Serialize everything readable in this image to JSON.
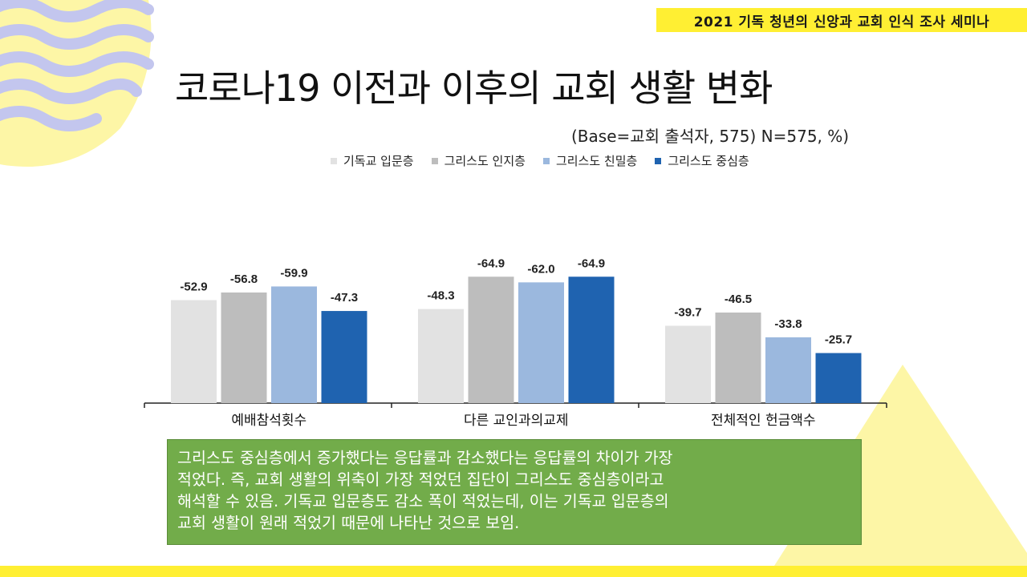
{
  "header": {
    "seminar_title": "2021 기독 청년의 신앙과 교회 인식 조사 세미나"
  },
  "slide": {
    "title": "코로나19 이전과 이후의 교회 생활 변화",
    "base_note": "(Base=교회 출석자, 575) N=575, %)"
  },
  "colors": {
    "accent_yellow": "#ffef33",
    "wave_blue": "#c3c6ee",
    "wave_yellow": "#fdf6a6",
    "note_green": "#72ac4a"
  },
  "chart_data": {
    "type": "bar",
    "title": "",
    "xlabel": "",
    "ylabel": "",
    "ylim": [
      -70,
      0
    ],
    "categories": [
      "예배참석횟수",
      "다른 교인과의교제",
      "전체적인 헌금액수"
    ],
    "series": [
      {
        "name": "기독교 입문층",
        "color": "#e2e2e2",
        "values": [
          -52.9,
          -48.3,
          -39.7
        ],
        "labels": [
          "-52.9",
          "-48.3",
          "-39.7"
        ]
      },
      {
        "name": "그리스도 인지층",
        "color": "#bdbdbd",
        "values": [
          -56.8,
          -64.9,
          -46.5
        ],
        "labels": [
          "-56.8",
          "-64.9",
          "-46.5"
        ]
      },
      {
        "name": "그리스도 친밀층",
        "color": "#9bb8de",
        "values": [
          -59.9,
          -62.0,
          -33.8
        ],
        "labels": [
          "-59.9",
          "-62.0",
          "-33.8"
        ]
      },
      {
        "name": "그리스도 중심층",
        "color": "#1f63b0",
        "values": [
          -47.3,
          -64.9,
          -25.7
        ],
        "labels": [
          "-47.3",
          "-64.9",
          "-25.7"
        ]
      }
    ],
    "legend_position": "top"
  },
  "note": {
    "lines": [
      "그리스도 중심층에서 증가했다는 응답률과 감소했다는 응답률의 차이가 가장",
      "적었다. 즉, 교회 생활의 위축이 가장 적었던 집단이 그리스도 중심층이라고",
      "해석할 수 있음. 기독교 입문층도 감소 폭이 적었는데, 이는 기독교 입문층의",
      "교회 생활이 원래 적었기 때문에 나타난 것으로 보임."
    ]
  }
}
